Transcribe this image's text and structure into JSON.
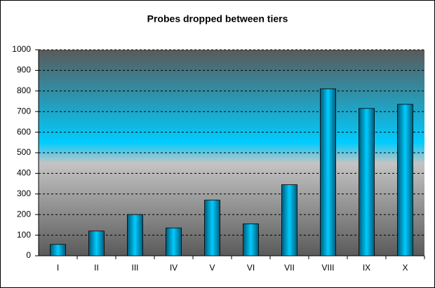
{
  "chart_data": {
    "type": "bar",
    "title": "Probes dropped between tiers",
    "categories": [
      "I",
      "II",
      "III",
      "IV",
      "V",
      "VI",
      "VII",
      "VIII",
      "IX",
      "X"
    ],
    "values": [
      55,
      120,
      200,
      135,
      270,
      155,
      345,
      810,
      715,
      735
    ],
    "color": "#00ccff",
    "ylim": [
      0,
      1000
    ],
    "yticks": [
      0,
      100,
      200,
      300,
      400,
      500,
      600,
      700,
      800,
      900,
      1000
    ],
    "grid": true
  }
}
